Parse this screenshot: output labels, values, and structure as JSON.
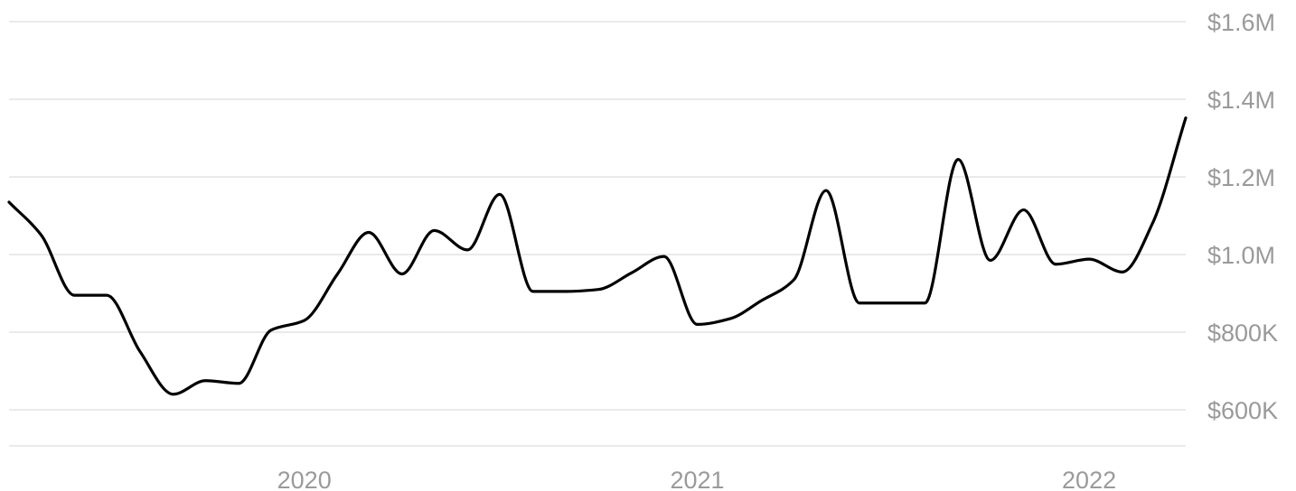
{
  "chart_data": {
    "type": "line",
    "title": "",
    "xlabel": "",
    "ylabel": "",
    "x_tick_labels": [
      "2020",
      "2021",
      "2022"
    ],
    "y_tick_labels": [
      "$600K",
      "$800K",
      "$1.0M",
      "$1.2M",
      "$1.4M",
      "$1.6M"
    ],
    "y_tick_values": [
      600000,
      800000,
      1000000,
      1200000,
      1400000,
      1600000
    ],
    "ylim": [
      500000,
      1600000
    ],
    "xlim": [
      "2019-04-01",
      "2022-04-01"
    ],
    "grid": true,
    "legend": "none",
    "colors": {
      "line": "#000000",
      "grid": "#e3e3e3",
      "tick_text": "#9a9a9a"
    },
    "series": [
      {
        "x": [
          "2019-04-01",
          "2019-05-01",
          "2019-06-01",
          "2019-07-01",
          "2019-08-01",
          "2019-09-01",
          "2019-10-01",
          "2019-11-01",
          "2019-12-01",
          "2020-01-01",
          "2020-02-01",
          "2020-03-01",
          "2020-04-01",
          "2020-05-01",
          "2020-06-01",
          "2020-07-01",
          "2020-08-01",
          "2020-09-01",
          "2020-10-01",
          "2020-11-01",
          "2020-12-01",
          "2021-01-01",
          "2021-02-01",
          "2021-03-01",
          "2021-04-01",
          "2021-05-01",
          "2021-06-01",
          "2021-07-01",
          "2021-08-01",
          "2021-09-01",
          "2021-10-01",
          "2021-11-01",
          "2021-12-01",
          "2022-01-01",
          "2022-02-01",
          "2022-03-01",
          "2022-04-01"
        ],
        "values": [
          1135000,
          1050000,
          895000,
          895000,
          750000,
          640000,
          675000,
          668000,
          805000,
          830000,
          950000,
          1057000,
          950000,
          1062000,
          1012000,
          1155000,
          905000,
          905000,
          910000,
          953000,
          995000,
          820000,
          835000,
          880000,
          935000,
          1165000,
          875000,
          875000,
          875000,
          1245000,
          985000,
          1115000,
          975000,
          988000,
          955000,
          1080000,
          1352000
        ]
      }
    ]
  }
}
